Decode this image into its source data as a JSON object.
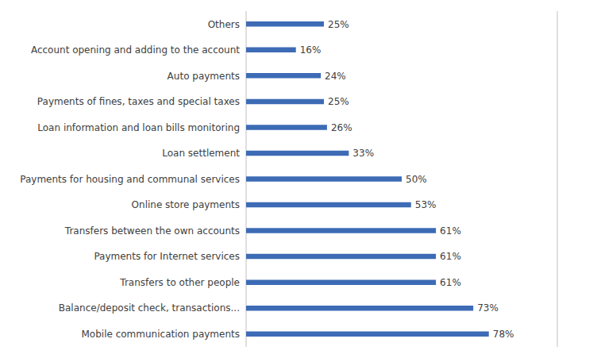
{
  "chart_data": {
    "type": "bar",
    "orientation": "horizontal",
    "categories": [
      "Mobile communication payments",
      "Balance/deposit check, transactions...",
      "Transfers to other people",
      "Payments for Internet services",
      "Transfers between the own accounts",
      "Online store payments",
      "Payments for housing and communal services",
      "Loan settlement",
      "Loan information and loan bills monitoring",
      "Payments of fines, taxes and special taxes",
      "Auto payments",
      "Account opening and adding to the account",
      "Others"
    ],
    "values": [
      78,
      73,
      61,
      61,
      61,
      53,
      50,
      33,
      26,
      25,
      24,
      16,
      25
    ],
    "value_labels": [
      "78%",
      "73%",
      "61%",
      "61%",
      "61%",
      "53%",
      "50%",
      "33%",
      "26%",
      "25%",
      "24%",
      "16%",
      "25%"
    ],
    "color": "#3D6BB5",
    "xlim": [
      0,
      100
    ],
    "xticks": [
      0,
      20,
      40,
      60,
      80,
      100
    ],
    "grid": true,
    "data_labels": true,
    "tick_labels": "y"
  }
}
